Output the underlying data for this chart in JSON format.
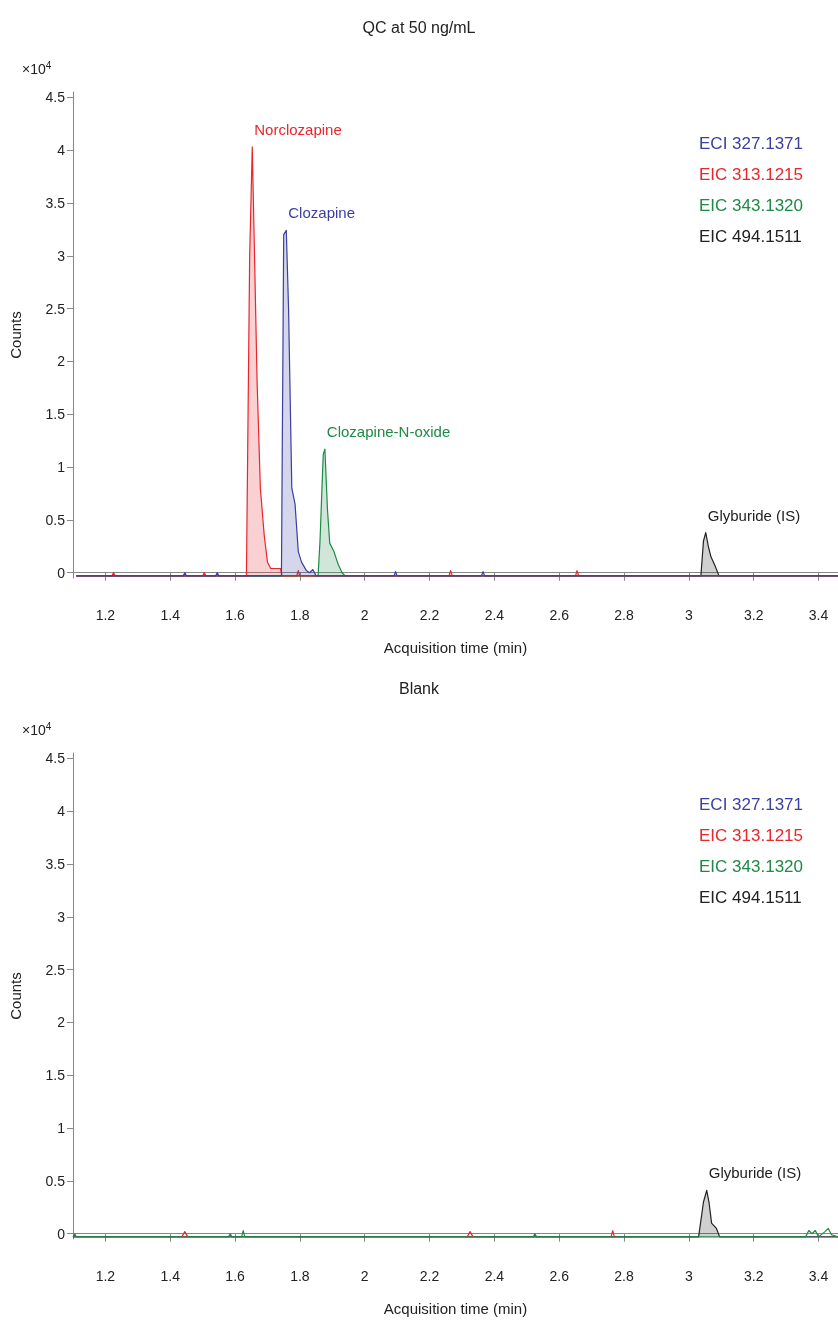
{
  "chart_data": [
    {
      "type": "area",
      "title": "QC at 50 ng/mL",
      "xlabel": "Acquisition time (min)",
      "ylabel": "Counts",
      "xlim": [
        1.1,
        3.46
      ],
      "xticks": [
        1.2,
        1.4,
        1.6,
        1.8,
        2,
        2.2,
        2.4,
        2.6,
        2.8,
        3,
        3.2,
        3.4
      ],
      "ylim": [
        -0.05,
        4.55
      ],
      "yticks": [
        0,
        0.5,
        1,
        1.5,
        2,
        2.5,
        3,
        3.5,
        4,
        4.5
      ],
      "grid": false,
      "legend": "top right",
      "marker": "none",
      "line_style": "solid",
      "annotations": [
        "×10$^{4}$",
        {
          "text": "Norclozapine",
          "x": 1.653,
          "y": 4.03
        },
        {
          "text": "Clozapine",
          "x": 1.758,
          "y": 3.24
        },
        {
          "text": "Clozapine-N-oxide",
          "x": 1.877,
          "y": 1.17
        },
        {
          "text": "Glyburide (IS)",
          "x": 3.052,
          "y": 0.38
        }
      ],
      "series": [
        {
          "name": "ECI 327.1371",
          "color": "#3a3fa0",
          "x": [
            1.11,
            1.44,
            1.445,
            1.45,
            1.54,
            1.545,
            1.55,
            1.743,
            1.75,
            1.758,
            1.765,
            1.775,
            1.785,
            1.795,
            1.805,
            1.82,
            1.83,
            1.84,
            1.85,
            2.09,
            2.095,
            2.1,
            2.36,
            2.365,
            2.37,
            3.46
          ],
          "values": [
            -0.03,
            -0.03,
            0.0,
            -0.03,
            -0.03,
            0.0,
            -0.03,
            -0.03,
            3.2,
            3.24,
            2.5,
            0.8,
            0.65,
            0.2,
            0.1,
            0.02,
            0.0,
            0.03,
            -0.03,
            -0.03,
            0.01,
            -0.03,
            -0.03,
            0.01,
            -0.03,
            -0.03
          ]
        },
        {
          "name": "EIC 313.1215",
          "color": "#e8262b",
          "x": [
            1.11,
            1.22,
            1.225,
            1.23,
            1.5,
            1.505,
            1.51,
            1.635,
            1.645,
            1.653,
            1.66,
            1.668,
            1.678,
            1.69,
            1.7,
            1.71,
            1.74,
            1.745,
            1.79,
            1.795,
            1.8,
            2.26,
            2.265,
            2.27,
            2.65,
            2.655,
            2.66,
            3.25,
            3.46
          ],
          "values": [
            -0.03,
            -0.03,
            0.0,
            -0.03,
            -0.03,
            0.0,
            -0.03,
            -0.03,
            3.0,
            4.03,
            3.0,
            1.8,
            0.8,
            0.35,
            0.1,
            0.04,
            0.04,
            -0.03,
            -0.03,
            0.02,
            -0.03,
            -0.03,
            0.02,
            -0.03,
            -0.03,
            0.02,
            -0.03,
            -0.03,
            -0.03
          ]
        },
        {
          "name": "EIC 343.1320",
          "color": "#1e8a45",
          "x": [
            1.11,
            1.856,
            1.862,
            1.872,
            1.877,
            1.885,
            1.892,
            1.905,
            1.918,
            1.93,
            1.94,
            3.46
          ],
          "values": [
            -0.03,
            -0.03,
            0.3,
            1.12,
            1.17,
            0.6,
            0.28,
            0.2,
            0.08,
            0.0,
            -0.03,
            -0.03
          ]
        },
        {
          "name": "EIC 494.1511",
          "color": "#222222",
          "x": [
            1.11,
            3.037,
            3.045,
            3.052,
            3.06,
            3.068,
            3.08,
            3.093,
            3.46
          ],
          "values": [
            -0.03,
            -0.03,
            0.3,
            0.38,
            0.25,
            0.15,
            0.07,
            -0.03,
            -0.03
          ]
        }
      ]
    },
    {
      "type": "area",
      "title": "Blank",
      "xlabel": "Acquisition time (min)",
      "ylabel": "Counts",
      "xlim": [
        1.1,
        3.46
      ],
      "xticks": [
        1.2,
        1.4,
        1.6,
        1.8,
        2,
        2.2,
        2.4,
        2.6,
        2.8,
        3,
        3.2,
        3.4
      ],
      "ylim": [
        -0.05,
        4.55
      ],
      "yticks": [
        0,
        0.5,
        1,
        1.5,
        2,
        2.5,
        3,
        3.5,
        4,
        4.5
      ],
      "grid": false,
      "legend": "top right",
      "marker": "none",
      "line_style": "solid",
      "annotations": [
        "×10$^{4}$",
        {
          "text": "Glyburide (IS)",
          "x": 3.055,
          "y": 0.41
        }
      ],
      "series": [
        {
          "name": "ECI 327.1371",
          "type": "line",
          "color": "#3a3fa0"
        },
        {
          "name": "EIC 313.1215",
          "type": "line",
          "color": "#e8262b",
          "x": [
            1.436,
            1.445,
            1.454,
            1.9,
            2.316,
            2.325,
            2.334,
            2.5,
            2.76,
            2.765,
            2.77
          ],
          "values": [
            -0.03,
            0.02,
            -0.03,
            null,
            -0.03,
            0.02,
            -0.03,
            null,
            -0.03,
            0.03,
            -0.03
          ]
        },
        {
          "name": "EIC 343.1320",
          "type": "line",
          "color": "#1e8a45",
          "x": [
            1.1,
            1.105,
            1.11,
            1.58,
            1.585,
            1.59,
            1.62,
            1.625,
            1.63,
            2.52,
            2.525,
            2.53,
            3.36,
            3.37,
            3.38,
            3.39,
            3.4,
            3.42,
            3.43,
            3.44,
            3.46
          ],
          "values": [
            -0.03,
            0.0,
            -0.03,
            -0.03,
            0.0,
            -0.03,
            -0.03,
            0.03,
            -0.03,
            -0.03,
            0.0,
            -0.03,
            -0.03,
            0.03,
            0.0,
            0.03,
            -0.03,
            0.02,
            0.05,
            -0.01,
            -0.03
          ]
        },
        {
          "name": "EIC 494.1511",
          "color": "#222222",
          "x": [
            1.1,
            3.03,
            3.045,
            3.055,
            3.062,
            3.07,
            3.085,
            3.095,
            3.46
          ],
          "values": [
            -0.03,
            -0.03,
            0.3,
            0.41,
            0.3,
            0.1,
            0.05,
            -0.03,
            -0.03
          ]
        }
      ]
    }
  ]
}
